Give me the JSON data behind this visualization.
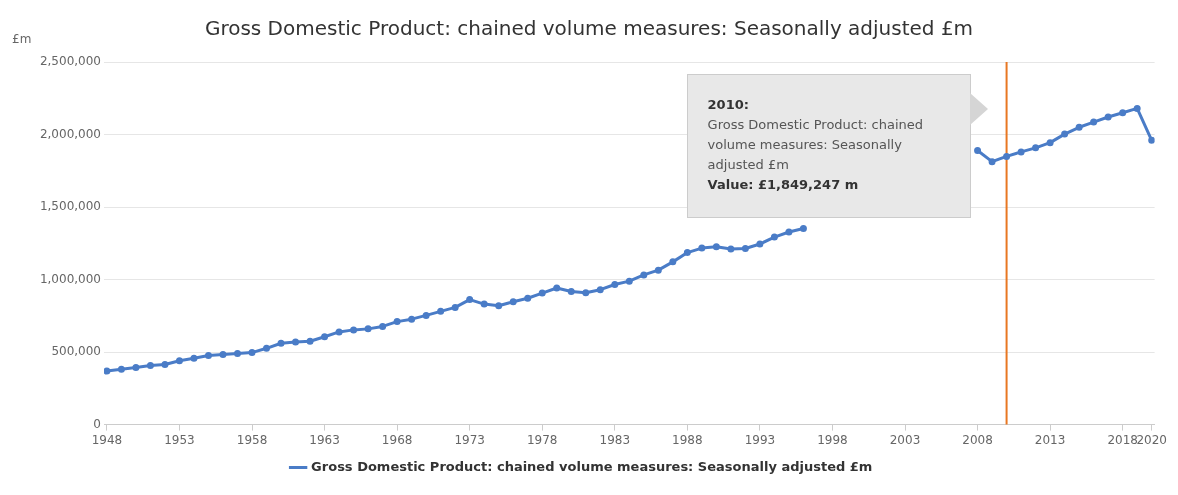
{
  "chart_data": {
    "type": "line",
    "title": "Gross Domestic Product: chained volume measures: Seasonally adjusted £m",
    "ylabel": "£m",
    "x": [
      1948,
      1949,
      1950,
      1951,
      1952,
      1953,
      1954,
      1955,
      1956,
      1957,
      1958,
      1959,
      1960,
      1961,
      1962,
      1963,
      1964,
      1965,
      1966,
      1967,
      1968,
      1969,
      1970,
      1971,
      1972,
      1973,
      1974,
      1975,
      1976,
      1977,
      1978,
      1979,
      1980,
      1981,
      1982,
      1983,
      1984,
      1985,
      1986,
      1987,
      1988,
      1989,
      1990,
      1991,
      1992,
      1993,
      1994,
      1995,
      1996,
      1997,
      1998,
      1999,
      2000,
      2001,
      2002,
      2003,
      2004,
      2005,
      2006,
      2007,
      2008,
      2009,
      2010,
      2011,
      2012,
      2013,
      2014,
      2015,
      2016,
      2017,
      2018,
      2019,
      2020
    ],
    "series": [
      {
        "name": "Gross Domestic Product: chained volume measures: Seasonally adjusted £m",
        "color": "#4a7cc7",
        "values": [
          369000,
          381000,
          393000,
          407000,
          414000,
          440000,
          457000,
          476000,
          483000,
          490000,
          497000,
          526000,
          561000,
          570000,
          575000,
          606000,
          639000,
          653000,
          660000,
          677000,
          710000,
          727000,
          753000,
          781000,
          808000,
          862000,
          831000,
          819000,
          847000,
          871000,
          907000,
          942000,
          918000,
          909000,
          930000,
          966000,
          989000,
          1032000,
          1065000,
          1122000,
          1186000,
          1217000,
          1226000,
          1210000,
          1214000,
          1245000,
          1293000,
          1328000,
          1352000,
          null,
          null,
          null,
          null,
          null,
          null,
          null,
          null,
          null,
          null,
          null,
          1890000,
          1813000,
          1849247,
          1880000,
          1908000,
          1944000,
          2003000,
          2050000,
          2086000,
          2121000,
          2150000,
          2180000,
          1960000
        ]
      }
    ],
    "xlim": [
      1947.8,
      2020.2
    ],
    "xticks": [
      1948,
      1953,
      1958,
      1963,
      1968,
      1973,
      1978,
      1983,
      1988,
      1993,
      1998,
      2003,
      2008,
      2013,
      2018,
      2020
    ],
    "ylim": [
      0,
      2500000
    ],
    "yticks": [
      {
        "value": 0,
        "label": "0"
      },
      {
        "value": 500000,
        "label": "500,000"
      },
      {
        "value": 1000000,
        "label": "1,000,000"
      },
      {
        "value": 1500000,
        "label": "1,500,000"
      },
      {
        "value": 2000000,
        "label": "2,000,000"
      },
      {
        "value": 2500000,
        "label": "2,500,000"
      }
    ],
    "grid": "y",
    "legend": "bottom",
    "marker": "circle",
    "line_style": "solid",
    "ref_lines": [
      {
        "axis": "x",
        "value": 2010,
        "color": "#e87722"
      }
    ],
    "annotations": [
      "2010:",
      "Gross Domestic Product: chained volume measures: Seasonally adjusted £m",
      "Value: £1,849,247 m"
    ]
  }
}
